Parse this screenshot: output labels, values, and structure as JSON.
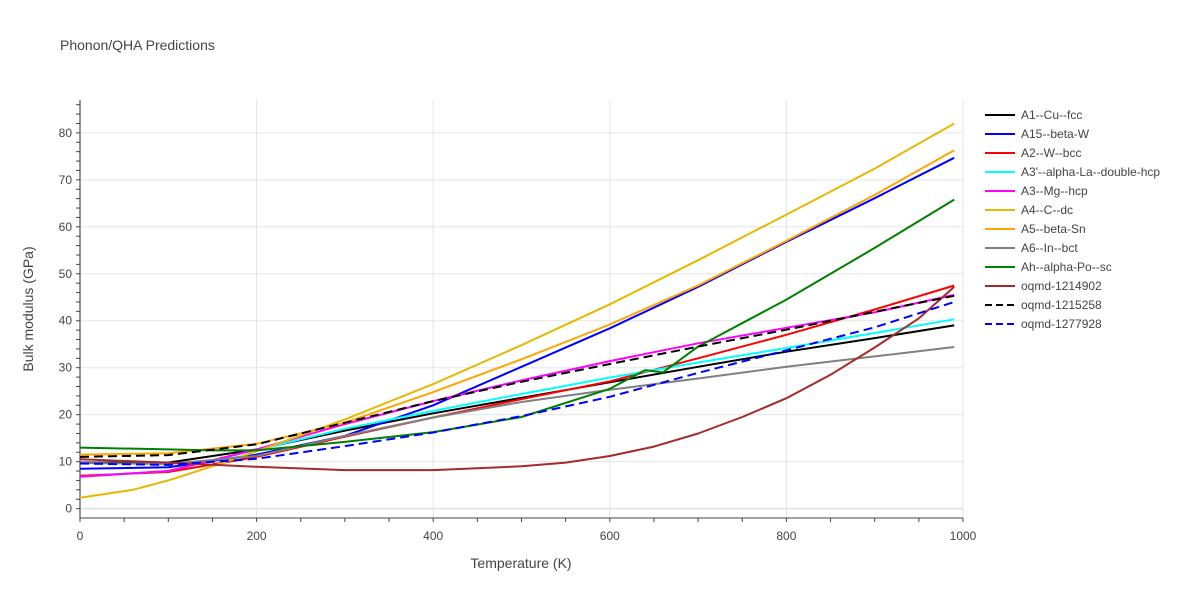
{
  "chart_data": {
    "type": "line",
    "title": "Phonon/QHA Predictions",
    "xlabel": "Temperature (K)",
    "ylabel": "Bulk modulus (GPa)",
    "xlim": [
      0,
      1000
    ],
    "ylim": [
      -2,
      87
    ],
    "xticks": [
      0,
      200,
      400,
      600,
      800,
      1000
    ],
    "yticks": [
      0,
      10,
      20,
      30,
      40,
      50,
      60,
      70,
      80
    ],
    "grid": true,
    "legend_position": "right",
    "series": [
      {
        "name": "A1--Cu--fcc",
        "color": "#000000",
        "dash": "solid",
        "x": [
          0,
          100,
          200,
          300,
          400,
          500,
          600,
          700,
          800,
          900,
          990
        ],
        "y": [
          9.8,
          9.8,
          12.6,
          16.6,
          20.3,
          23.6,
          26.9,
          30.2,
          33.4,
          36.3,
          39.0
        ]
      },
      {
        "name": "A15--beta-W",
        "color": "#0000ff",
        "dash": "solid",
        "x": [
          0,
          100,
          200,
          300,
          400,
          500,
          600,
          700,
          800,
          900,
          990
        ],
        "y": [
          8.5,
          8.8,
          11.5,
          15.5,
          22.0,
          30.2,
          38.4,
          47.2,
          56.8,
          66.1,
          74.7
        ]
      },
      {
        "name": "A2--W--bcc",
        "color": "#ff0000",
        "dash": "solid",
        "x": [
          0,
          100,
          200,
          300,
          400,
          500,
          600,
          700,
          800,
          900,
          990
        ],
        "y": [
          7.0,
          7.8,
          11.0,
          15.3,
          19.4,
          23.3,
          27.1,
          32.0,
          37.0,
          42.4,
          47.5
        ]
      },
      {
        "name": "A3'--alpha-La--double-hcp",
        "color": "#00ffff",
        "dash": "solid",
        "x": [
          0,
          100,
          200,
          300,
          400,
          500,
          600,
          700,
          800,
          900,
          990
        ],
        "y": [
          6.8,
          8.0,
          12.5,
          17.0,
          20.8,
          24.4,
          27.9,
          31.1,
          34.2,
          37.4,
          40.3
        ]
      },
      {
        "name": "A3--Mg--hcp",
        "color": "#ff00ff",
        "dash": "solid",
        "x": [
          0,
          100,
          200,
          300,
          400,
          500,
          600,
          700,
          800,
          900,
          990
        ],
        "y": [
          6.8,
          8.0,
          12.6,
          18.0,
          22.9,
          27.3,
          31.4,
          35.2,
          38.5,
          41.8,
          45.5
        ]
      },
      {
        "name": "A4--C--dc",
        "color": "#e6b800",
        "dash": "solid",
        "x": [
          0,
          60,
          100,
          150,
          200,
          300,
          400,
          500,
          600,
          700,
          800,
          900,
          990
        ],
        "y": [
          2.3,
          4.0,
          6.0,
          9.0,
          12.2,
          19.0,
          26.5,
          34.8,
          43.5,
          52.9,
          62.6,
          72.4,
          82.0
        ]
      },
      {
        "name": "A5--beta-Sn",
        "color": "#ffa500",
        "dash": "solid",
        "x": [
          0,
          100,
          200,
          300,
          400,
          500,
          600,
          700,
          800,
          900,
          990
        ],
        "y": [
          11.5,
          11.8,
          13.8,
          18.3,
          24.8,
          31.8,
          39.2,
          47.5,
          57.0,
          66.8,
          76.3
        ]
      },
      {
        "name": "A6--In--bct",
        "color": "#808080",
        "dash": "solid",
        "x": [
          0,
          100,
          200,
          300,
          400,
          500,
          600,
          700,
          800,
          900,
          990
        ],
        "y": [
          9.7,
          9.5,
          11.2,
          15.5,
          19.4,
          22.7,
          25.3,
          27.7,
          30.2,
          32.4,
          34.4
        ]
      },
      {
        "name": "Ah--alpha-Po--sc",
        "color": "#008000",
        "dash": "solid",
        "x": [
          0,
          100,
          150,
          200,
          300,
          400,
          500,
          600,
          640,
          660,
          700,
          800,
          900,
          990
        ],
        "y": [
          13.0,
          12.6,
          12.4,
          12.4,
          14.2,
          16.3,
          19.5,
          25.5,
          29.5,
          29.0,
          34.5,
          44.5,
          55.5,
          65.8
        ]
      },
      {
        "name": "oqmd-1214902",
        "color": "#a52a2a",
        "dash": "solid",
        "x": [
          0,
          100,
          200,
          300,
          400,
          500,
          550,
          600,
          650,
          700,
          750,
          800,
          850,
          900,
          950,
          990
        ],
        "y": [
          10.5,
          9.8,
          8.9,
          8.2,
          8.2,
          9.0,
          9.8,
          11.2,
          13.2,
          16.0,
          19.5,
          23.5,
          28.5,
          34.3,
          40.5,
          47.2
        ]
      },
      {
        "name": "oqmd-1215258",
        "color": "#000000",
        "dash": "dash",
        "x": [
          0,
          100,
          200,
          300,
          400,
          500,
          600,
          700,
          800,
          900,
          990
        ],
        "y": [
          11.0,
          11.4,
          13.7,
          18.3,
          22.9,
          27.0,
          30.8,
          34.5,
          38.1,
          41.9,
          45.3
        ]
      },
      {
        "name": "oqmd-1277928",
        "color": "#0000ff",
        "dash": "dash",
        "x": [
          0,
          100,
          200,
          300,
          400,
          500,
          600,
          700,
          800,
          900,
          990
        ],
        "y": [
          9.6,
          9.3,
          10.6,
          13.3,
          16.2,
          19.7,
          23.8,
          28.9,
          33.7,
          38.6,
          44.0
        ]
      }
    ]
  }
}
